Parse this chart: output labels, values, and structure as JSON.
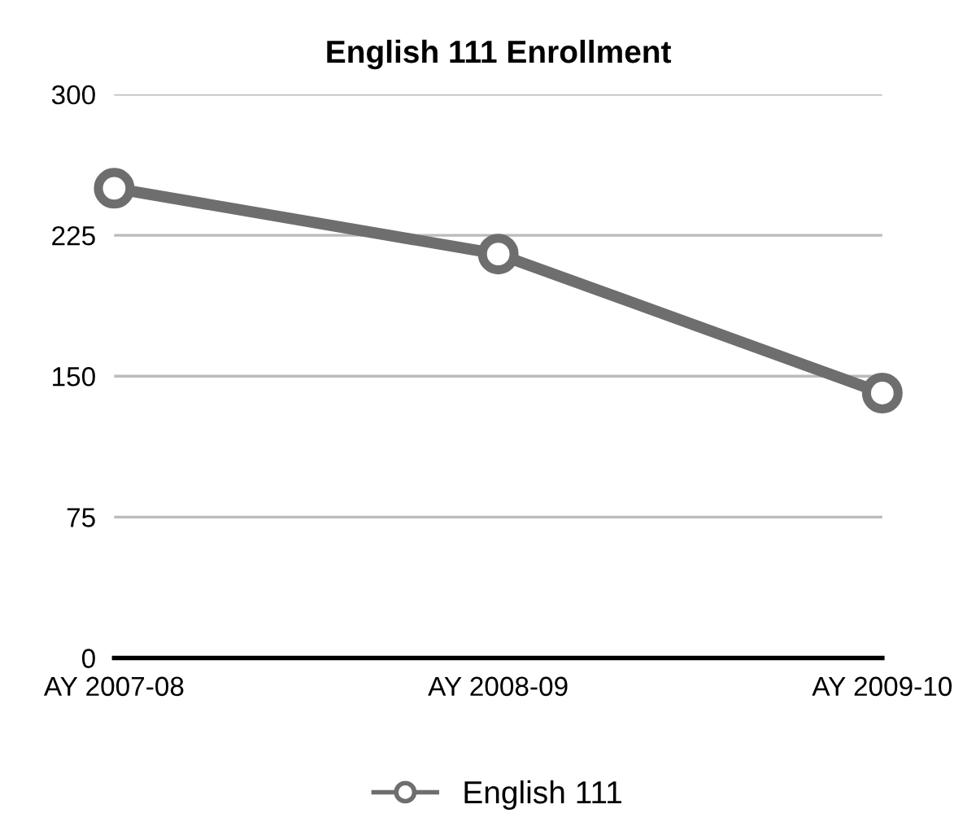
{
  "chart_data": {
    "type": "line",
    "title": "English 111 Enrollment",
    "categories": [
      "AY 2007-08",
      "AY 2008-09",
      "AY 2009-10"
    ],
    "series": [
      {
        "name": "English 111",
        "color": "#6e6e6e",
        "values": [
          250,
          215,
          141
        ]
      }
    ],
    "ylim": [
      0,
      300
    ],
    "yticks": [
      0,
      75,
      150,
      225,
      300
    ],
    "grid": "y",
    "legend": "bottom",
    "marker": "circle",
    "line_style": "solid"
  }
}
